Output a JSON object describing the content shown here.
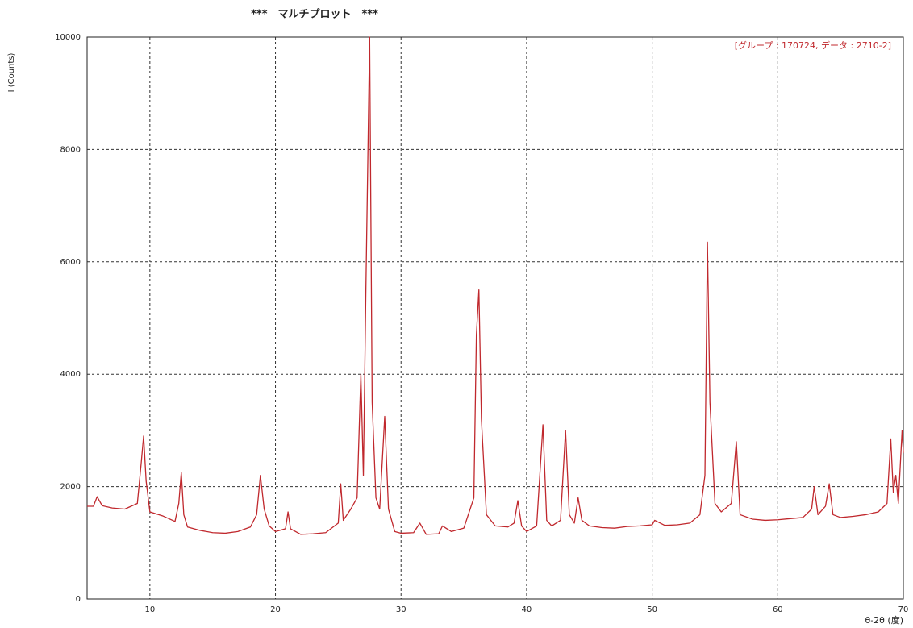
{
  "chart_data": {
    "type": "line",
    "title": "***　マルチプロット　***",
    "annotation": "[グループ : 170724, データ : 2710-2]",
    "ylabel": "I (Counts)",
    "xlabel": "θ-2θ (度)",
    "xlim": [
      5,
      70
    ],
    "ylim": [
      0,
      10000
    ],
    "xticks": [
      10,
      20,
      30,
      40,
      50,
      60,
      70
    ],
    "yticks": [
      0,
      2000,
      4000,
      6000,
      8000,
      10000
    ],
    "grid": true,
    "series": [
      {
        "name": "2710-2",
        "color": "#c0282d",
        "x": [
          5,
          5.5,
          5.8,
          6.2,
          7,
          8,
          9,
          9.3,
          9.5,
          9.7,
          10,
          11,
          12,
          12.3,
          12.5,
          12.7,
          13,
          14,
          15,
          16,
          17,
          18,
          18.5,
          18.8,
          19.1,
          19.5,
          20,
          20.8,
          21,
          21.2,
          22,
          23,
          24,
          25,
          25.2,
          25.4,
          26,
          26.5,
          26.8,
          27.0,
          27.2,
          27.5,
          27.7,
          28,
          28.3,
          28.7,
          29,
          29.5,
          30,
          31,
          31.5,
          32,
          33,
          33.3,
          34,
          35,
          35.8,
          36.0,
          36.2,
          36.4,
          36.8,
          37.5,
          38.5,
          39,
          39.3,
          39.6,
          40,
          40.8,
          41.3,
          41.6,
          42,
          42.7,
          43.1,
          43.4,
          43.8,
          44.1,
          44.4,
          45,
          46,
          47,
          48,
          49,
          50,
          50.2,
          51,
          52,
          53,
          53.8,
          54.2,
          54.4,
          54.6,
          55,
          55.5,
          56.3,
          56.7,
          57,
          58,
          59,
          60,
          61,
          62,
          62.7,
          62.9,
          63.2,
          63.8,
          64.1,
          64.4,
          65,
          66,
          67,
          68,
          68.7,
          69.0,
          69.2,
          69.4,
          69.6,
          69.9,
          70
        ],
        "values": [
          1650,
          1650,
          1820,
          1660,
          1620,
          1600,
          1700,
          2400,
          2900,
          2100,
          1550,
          1480,
          1380,
          1700,
          2250,
          1500,
          1280,
          1220,
          1180,
          1170,
          1200,
          1280,
          1500,
          2200,
          1600,
          1300,
          1200,
          1250,
          1550,
          1250,
          1150,
          1160,
          1180,
          1350,
          2050,
          1400,
          1600,
          1800,
          4000,
          2200,
          5500,
          10000,
          3500,
          1800,
          1600,
          3250,
          1600,
          1200,
          1170,
          1180,
          1350,
          1150,
          1160,
          1300,
          1200,
          1260,
          1800,
          4700,
          5500,
          3200,
          1500,
          1300,
          1280,
          1350,
          1750,
          1300,
          1200,
          1300,
          3100,
          1400,
          1300,
          1400,
          3000,
          1500,
          1350,
          1800,
          1400,
          1300,
          1270,
          1260,
          1290,
          1300,
          1320,
          1400,
          1310,
          1320,
          1350,
          1500,
          2200,
          6350,
          3500,
          1700,
          1550,
          1700,
          2800,
          1500,
          1420,
          1400,
          1410,
          1430,
          1450,
          1600,
          2000,
          1500,
          1650,
          2050,
          1500,
          1450,
          1470,
          1500,
          1550,
          1700,
          2850,
          1900,
          2200,
          1700,
          3000,
          2600
        ]
      }
    ]
  }
}
